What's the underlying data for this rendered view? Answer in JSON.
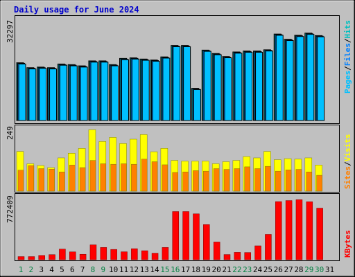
{
  "title": "Daily usage for June 2024",
  "colors": {
    "background": "#c0c0c0",
    "title": "#0000cc",
    "hits": "#00c0c0",
    "files": "#0080ff",
    "pages": "#00c0ff",
    "visits": "#ffff00",
    "sites": "#ff8000",
    "kbytes": "#ff0000",
    "weekend_day": "#008040"
  },
  "chart_data": [
    {
      "type": "bar",
      "panel": "hits-files-pages",
      "ymax_label": "32297",
      "ylim": [
        0,
        32297
      ],
      "right_label_parts": [
        "Pages",
        "Files",
        "Hits"
      ],
      "days": [
        "1",
        "2",
        "3",
        "4",
        "5",
        "6",
        "7",
        "8",
        "9",
        "10",
        "11",
        "12",
        "13",
        "14",
        "15",
        "16",
        "17",
        "18",
        "19",
        "20",
        "21",
        "22",
        "23",
        "24",
        "25",
        "26",
        "27",
        "28",
        "29",
        "30",
        "31"
      ],
      "series": [
        {
          "name": "Hits",
          "values": [
            18700,
            17100,
            17300,
            17100,
            18300,
            18100,
            17700,
            19300,
            19300,
            18100,
            20100,
            20300,
            19900,
            19600,
            20600,
            24300,
            24300,
            10400,
            22800,
            21700,
            20700,
            22200,
            22500,
            22500,
            22900,
            28000,
            26300,
            27600,
            28300,
            27500
          ]
        },
        {
          "name": "Files",
          "values": [
            18500,
            16900,
            17100,
            16900,
            18100,
            17900,
            17500,
            19100,
            19100,
            17900,
            19900,
            20100,
            19700,
            19400,
            20400,
            24100,
            24100,
            10200,
            22600,
            21500,
            20500,
            22000,
            22300,
            22300,
            22700,
            27800,
            26100,
            27400,
            28100,
            27300
          ]
        },
        {
          "name": "Pages",
          "values": [
            18300,
            16700,
            16900,
            16700,
            17900,
            17700,
            17300,
            18900,
            18900,
            17700,
            19700,
            19900,
            19500,
            19200,
            20200,
            23900,
            23900,
            10000,
            22400,
            21300,
            20300,
            21800,
            22100,
            22100,
            22500,
            27600,
            25900,
            27200,
            27900,
            27100
          ]
        }
      ]
    },
    {
      "type": "bar",
      "panel": "visits-sites",
      "ymax_label": "249",
      "ylim": [
        0,
        249
      ],
      "right_label_parts": [
        "Sites",
        "Visits"
      ],
      "series": [
        {
          "name": "Visits",
          "values": [
            155,
            107,
            100,
            92,
            130,
            148,
            167,
            240,
            194,
            210,
            186,
            203,
            221,
            154,
            167,
            120,
            117,
            117,
            117,
            107,
            115,
            120,
            135,
            130,
            155,
            123,
            127,
            125,
            130,
            102
          ]
        },
        {
          "name": "Sites",
          "values": [
            82,
            100,
            88,
            86,
            75,
            102,
            92,
            120,
            107,
            105,
            107,
            105,
            125,
            115,
            103,
            73,
            75,
            80,
            78,
            88,
            85,
            88,
            95,
            88,
            97,
            78,
            83,
            85,
            75,
            62
          ]
        }
      ]
    },
    {
      "type": "bar",
      "panel": "kbytes",
      "ymax_label": "772409",
      "ylim": [
        0,
        772409
      ],
      "right_label_parts": [
        "KBytes"
      ],
      "series": [
        {
          "name": "KBytes",
          "values": [
            38000,
            38000,
            52000,
            62000,
            130000,
            96000,
            66000,
            182000,
            150000,
            126000,
            97000,
            135000,
            110000,
            80000,
            150000,
            590000,
            590000,
            562000,
            430000,
            217000,
            63000,
            90000,
            88000,
            170000,
            310000,
            712000,
            725000,
            735000,
            710000,
            632000
          ]
        }
      ]
    }
  ]
}
